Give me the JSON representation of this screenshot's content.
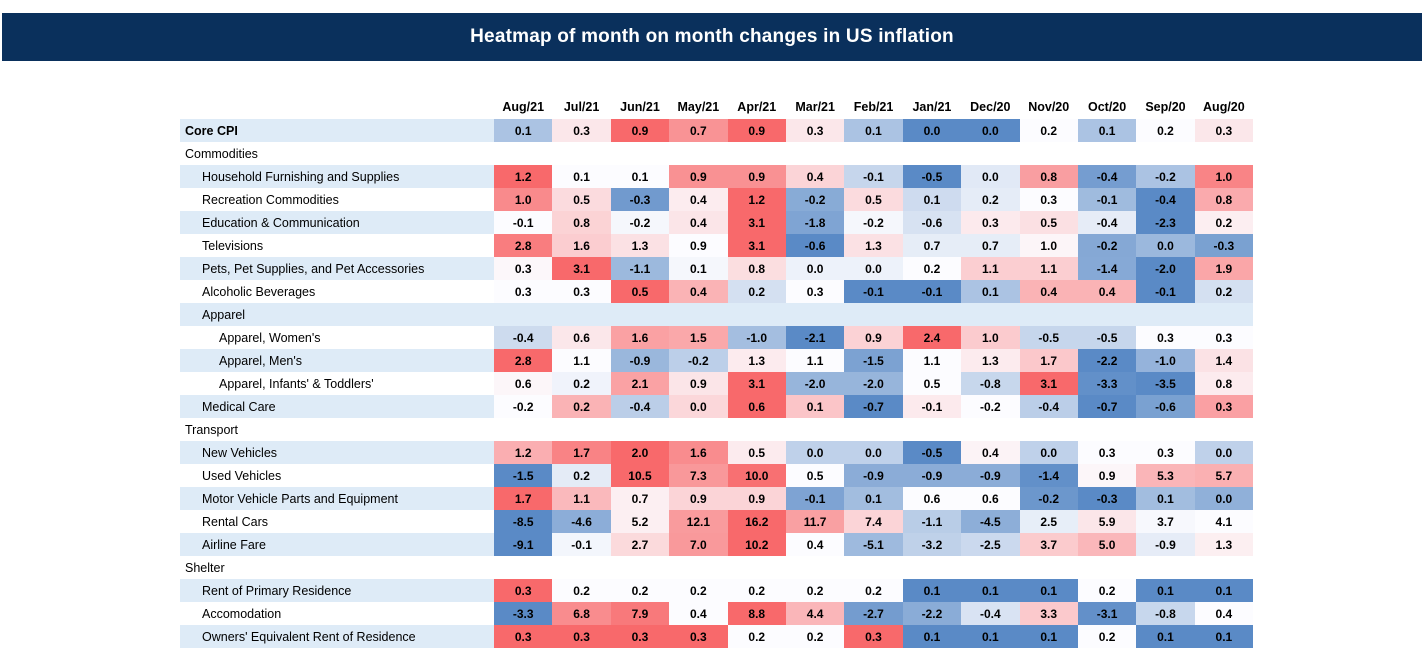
{
  "title": "Heatmap of month on month changes in US inflation",
  "colors": {
    "title_bar_bg": "#0A305C",
    "title_text": "#FFFFFF",
    "row_stripe": "#DEEBF7",
    "row_plain": "#FFFFFF",
    "scale_min_blue": "#5A8AC6",
    "scale_mid_white": "#FCFCFF",
    "scale_max_red": "#F8696B",
    "text": "#000000"
  },
  "chart_data": {
    "type": "heatmap",
    "title": "Heatmap of month on month changes in US inflation",
    "legend_position": "none",
    "color_scale": {
      "type": "3-color diverging, normalized per row",
      "min_color": "#5A8AC6",
      "mid_color": "#FCFCFF",
      "max_color": "#F8696B",
      "midpoint": "row median (50th percentile)"
    },
    "columns": [
      "Aug/21",
      "Jul/21",
      "Jun/21",
      "May/21",
      "Apr/21",
      "Mar/21",
      "Feb/21",
      "Jan/21",
      "Dec/20",
      "Nov/20",
      "Oct/20",
      "Sep/20",
      "Aug/20"
    ],
    "rows": [
      {
        "label": "Core CPI",
        "level": 0,
        "bold": true,
        "section": false,
        "values": [
          0.1,
          0.3,
          0.9,
          0.7,
          0.9,
          0.3,
          0.1,
          0.0,
          0.0,
          0.2,
          0.1,
          0.2,
          0.3
        ]
      },
      {
        "label": "Commodities",
        "level": 0,
        "bold": false,
        "section": true,
        "values": null
      },
      {
        "label": "Household Furnishing and Supplies",
        "level": 1,
        "bold": false,
        "section": false,
        "values": [
          1.2,
          0.1,
          0.1,
          0.9,
          0.9,
          0.4,
          -0.1,
          -0.5,
          0.0,
          0.8,
          -0.4,
          -0.2,
          1.0
        ]
      },
      {
        "label": "Recreation Commodities",
        "level": 1,
        "bold": false,
        "section": false,
        "values": [
          1.0,
          0.5,
          -0.3,
          0.4,
          1.2,
          -0.2,
          0.5,
          0.1,
          0.2,
          0.3,
          -0.1,
          -0.4,
          0.8
        ]
      },
      {
        "label": "Education & Communication",
        "level": 1,
        "bold": false,
        "section": false,
        "values": [
          -0.1,
          0.8,
          -0.2,
          0.4,
          3.1,
          -1.8,
          -0.2,
          -0.6,
          0.3,
          0.5,
          -0.4,
          -2.3,
          0.2
        ]
      },
      {
        "label": "Televisions",
        "level": 1,
        "bold": false,
        "section": false,
        "values": [
          2.8,
          1.6,
          1.3,
          0.9,
          3.1,
          -0.6,
          1.3,
          0.7,
          0.7,
          1.0,
          -0.2,
          0.0,
          -0.3
        ]
      },
      {
        "label": "Pets, Pet Supplies, and Pet Accessories",
        "level": 1,
        "bold": false,
        "section": false,
        "values": [
          0.3,
          3.1,
          -1.1,
          0.1,
          0.8,
          0.0,
          0.0,
          0.2,
          1.1,
          1.1,
          -1.4,
          -2.0,
          1.9
        ]
      },
      {
        "label": "Alcoholic Beverages",
        "level": 1,
        "bold": false,
        "section": false,
        "values": [
          0.3,
          0.3,
          0.5,
          0.4,
          0.2,
          0.3,
          -0.1,
          -0.1,
          0.1,
          0.4,
          0.4,
          -0.1,
          0.2
        ]
      },
      {
        "label": "Apparel",
        "level": 1,
        "bold": false,
        "section": true,
        "values": null
      },
      {
        "label": "Apparel, Women's",
        "level": 2,
        "bold": false,
        "section": false,
        "values": [
          -0.4,
          0.6,
          1.6,
          1.5,
          -1.0,
          -2.1,
          0.9,
          2.4,
          1.0,
          -0.5,
          -0.5,
          0.3,
          0.3
        ]
      },
      {
        "label": "Apparel, Men's",
        "level": 2,
        "bold": false,
        "section": false,
        "values": [
          2.8,
          1.1,
          -0.9,
          -0.2,
          1.3,
          1.1,
          -1.5,
          1.1,
          1.3,
          1.7,
          -2.2,
          -1.0,
          1.4
        ]
      },
      {
        "label": "Apparel, Infants' & Toddlers'",
        "level": 2,
        "bold": false,
        "section": false,
        "values": [
          0.6,
          0.2,
          2.1,
          0.9,
          3.1,
          -2.0,
          -2.0,
          0.5,
          -0.8,
          3.1,
          -3.3,
          -3.5,
          0.8
        ]
      },
      {
        "label": "Medical Care",
        "level": 1,
        "bold": false,
        "section": false,
        "values": [
          -0.2,
          0.2,
          -0.4,
          0.0,
          0.6,
          0.1,
          -0.7,
          -0.1,
          -0.2,
          -0.4,
          -0.7,
          -0.6,
          0.3
        ]
      },
      {
        "label": "Transport",
        "level": 0,
        "bold": false,
        "section": true,
        "values": null
      },
      {
        "label": "New Vehicles",
        "level": 1,
        "bold": false,
        "section": false,
        "values": [
          1.2,
          1.7,
          2.0,
          1.6,
          0.5,
          0.0,
          0.0,
          -0.5,
          0.4,
          0.0,
          0.3,
          0.3,
          0.0
        ]
      },
      {
        "label": "Used Vehicles",
        "level": 1,
        "bold": false,
        "section": false,
        "values": [
          -1.5,
          0.2,
          10.5,
          7.3,
          10.0,
          0.5,
          -0.9,
          -0.9,
          -0.9,
          -1.4,
          0.9,
          5.3,
          5.7
        ]
      },
      {
        "label": "Motor Vehicle Parts and Equipment",
        "level": 1,
        "bold": false,
        "section": false,
        "values": [
          1.7,
          1.1,
          0.7,
          0.9,
          0.9,
          -0.1,
          0.1,
          0.6,
          0.6,
          -0.2,
          -0.3,
          0.1,
          0.0
        ]
      },
      {
        "label": "Rental Cars",
        "level": 1,
        "bold": false,
        "section": false,
        "values": [
          -8.5,
          -4.6,
          5.2,
          12.1,
          16.2,
          11.7,
          7.4,
          -1.1,
          -4.5,
          2.5,
          5.9,
          3.7,
          4.1
        ]
      },
      {
        "label": "Airline Fare",
        "level": 1,
        "bold": false,
        "section": false,
        "values": [
          -9.1,
          -0.1,
          2.7,
          7.0,
          10.2,
          0.4,
          -5.1,
          -3.2,
          -2.5,
          3.7,
          5.0,
          -0.9,
          1.3
        ]
      },
      {
        "label": "Shelter",
        "level": 0,
        "bold": false,
        "section": true,
        "values": null
      },
      {
        "label": "Rent of Primary Residence",
        "level": 1,
        "bold": false,
        "section": false,
        "values": [
          0.3,
          0.2,
          0.2,
          0.2,
          0.2,
          0.2,
          0.2,
          0.1,
          0.1,
          0.1,
          0.2,
          0.1,
          0.1
        ]
      },
      {
        "label": "Accomodation",
        "level": 1,
        "bold": false,
        "section": false,
        "values": [
          -3.3,
          6.8,
          7.9,
          0.4,
          8.8,
          4.4,
          -2.7,
          -2.2,
          -0.4,
          3.3,
          -3.1,
          -0.8,
          0.4
        ]
      },
      {
        "label": "Owners' Equivalent Rent of Residence",
        "level": 1,
        "bold": false,
        "section": false,
        "values": [
          0.3,
          0.3,
          0.3,
          0.3,
          0.2,
          0.2,
          0.3,
          0.1,
          0.1,
          0.1,
          0.2,
          0.1,
          0.1
        ]
      }
    ]
  }
}
